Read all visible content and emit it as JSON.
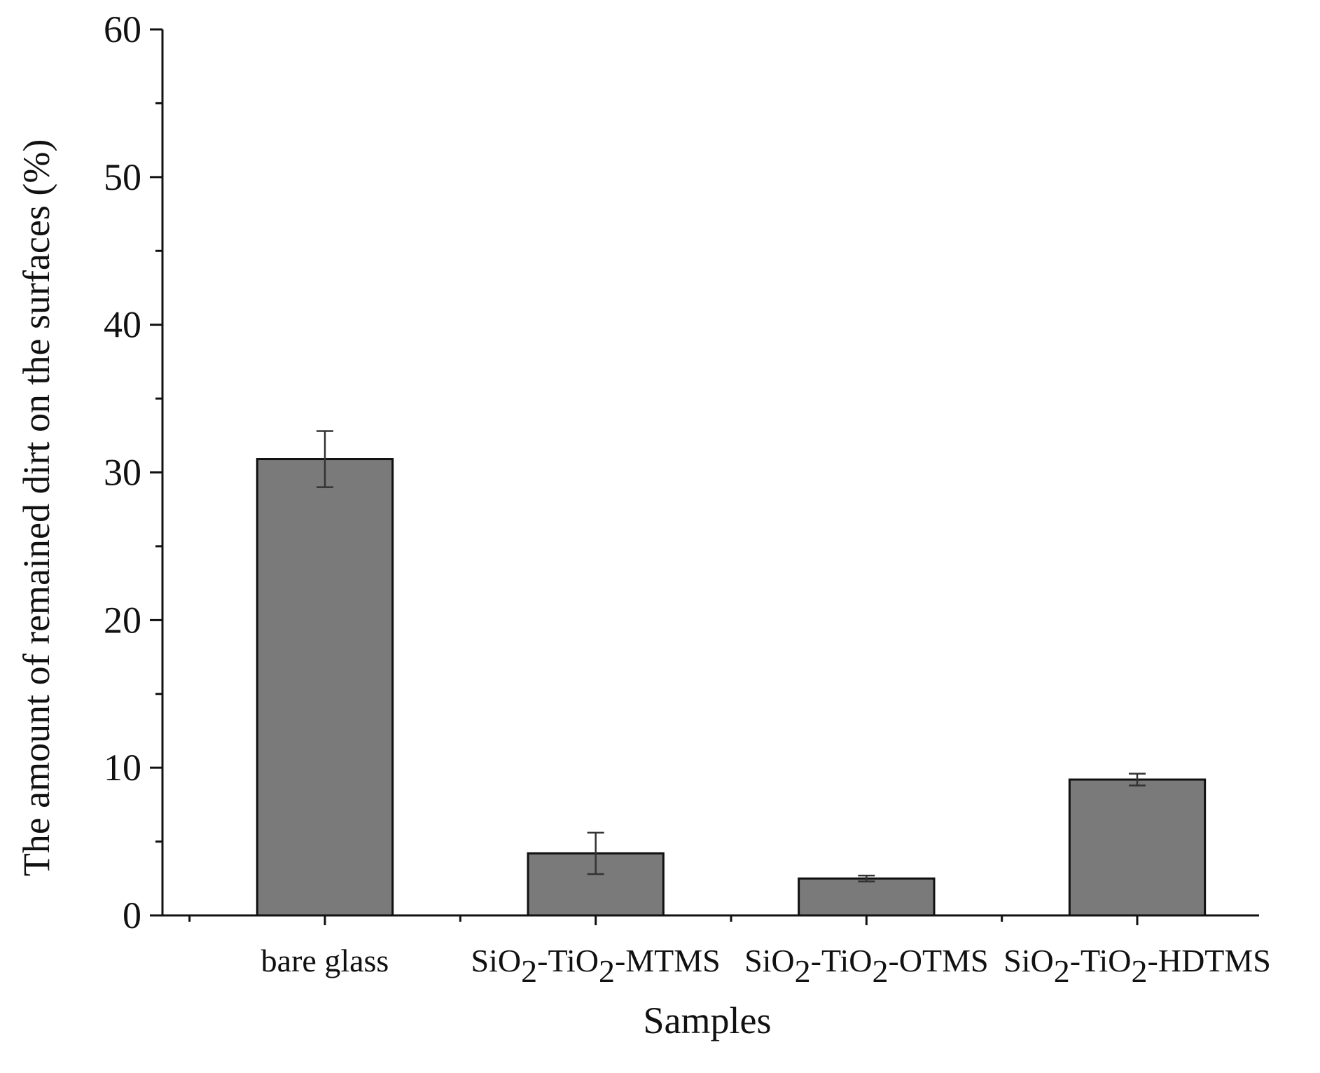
{
  "chart_data": {
    "type": "bar",
    "categories": [
      {
        "base": "bare glass",
        "parts": [
          {
            "t": "bare glass",
            "sub": false
          }
        ]
      },
      {
        "base": "SiO2-TiO2-MTMS",
        "parts": [
          {
            "t": "SiO",
            "sub": false
          },
          {
            "t": "2",
            "sub": true
          },
          {
            "t": "-TiO",
            "sub": false
          },
          {
            "t": "2",
            "sub": true
          },
          {
            "t": "-MTMS",
            "sub": false
          }
        ]
      },
      {
        "base": "SiO2-TiO2-OTMS",
        "parts": [
          {
            "t": "SiO",
            "sub": false
          },
          {
            "t": "2",
            "sub": true
          },
          {
            "t": "-TiO",
            "sub": false
          },
          {
            "t": "2",
            "sub": true
          },
          {
            "t": "-OTMS",
            "sub": false
          }
        ]
      },
      {
        "base": "SiO2-TiO2-HDTMS",
        "parts": [
          {
            "t": "SiO",
            "sub": false
          },
          {
            "t": "2",
            "sub": true
          },
          {
            "t": "-TiO",
            "sub": false
          },
          {
            "t": "2",
            "sub": true
          },
          {
            "t": "-HDTMS",
            "sub": false
          }
        ]
      }
    ],
    "values": [
      30.9,
      4.2,
      2.5,
      9.2
    ],
    "errors": [
      1.9,
      1.4,
      0.2,
      0.4
    ],
    "xlabel": "Samples",
    "ylabel": "The amount of remained dirt on the surfaces (%)",
    "ylim": [
      0,
      60
    ],
    "yticks": [
      0,
      10,
      20,
      30,
      40,
      50,
      60
    ],
    "grid": false,
    "bar_color": "#7a7a7a"
  }
}
